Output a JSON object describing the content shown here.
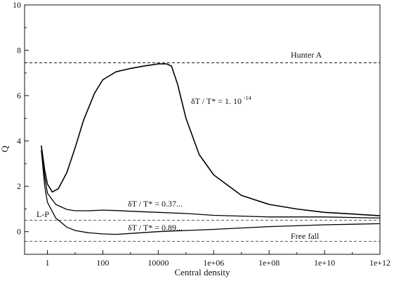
{
  "chart_data": {
    "type": "line",
    "xlabel": "Central density",
    "ylabel": "Q",
    "x_scale": "log10",
    "xlim": [
      0.15,
      1000000000000.0
    ],
    "ylim": [
      -1,
      10
    ],
    "x_ticks": [
      {
        "value": 1,
        "label": "1"
      },
      {
        "value": 100,
        "label": "100"
      },
      {
        "value": 10000,
        "label": "10000"
      },
      {
        "value": 1000000.0,
        "label": "1e+06"
      },
      {
        "value": 100000000.0,
        "label": "1e+08"
      },
      {
        "value": 10000000000.0,
        "label": "1e+10"
      },
      {
        "value": 1000000000000.0,
        "label": "1e+12"
      }
    ],
    "y_ticks": [
      {
        "value": 0,
        "label": "0"
      },
      {
        "value": 2,
        "label": "2"
      },
      {
        "value": 4,
        "label": "4"
      },
      {
        "value": 6,
        "label": "6"
      },
      {
        "value": 8,
        "label": "8"
      },
      {
        "value": 10,
        "label": "10"
      }
    ],
    "grid": false,
    "reference_lines": [
      {
        "label": "Hunter A",
        "y": 7.45
      },
      {
        "label": "L-P",
        "y": 0.5
      },
      {
        "label": "Free fall",
        "y": -0.43
      }
    ],
    "series": [
      {
        "annotation": "δT / T* = 1. 10",
        "annotation_sup": "-14",
        "points": [
          [
            0.6,
            3.8
          ],
          [
            0.8,
            2.7
          ],
          [
            1,
            2.1
          ],
          [
            1.5,
            1.75
          ],
          [
            2.5,
            1.9
          ],
          [
            5,
            2.6
          ],
          [
            10,
            3.7
          ],
          [
            20,
            4.9
          ],
          [
            50,
            6.1
          ],
          [
            100,
            6.7
          ],
          [
            300,
            7.05
          ],
          [
            1000,
            7.2
          ],
          [
            3000,
            7.3
          ],
          [
            10000,
            7.4
          ],
          [
            20000,
            7.4
          ],
          [
            30000,
            7.3
          ],
          [
            50000,
            6.5
          ],
          [
            100000,
            5.0
          ],
          [
            300000,
            3.4
          ],
          [
            1000000,
            2.5
          ],
          [
            10000000.0,
            1.6
          ],
          [
            100000000.0,
            1.2
          ],
          [
            1000000000.0,
            1.0
          ],
          [
            10000000000.0,
            0.85
          ],
          [
            100000000000.0,
            0.78
          ],
          [
            1000000000000.0,
            0.7
          ]
        ]
      },
      {
        "annotation": "δT / T* = 0.37...",
        "points": [
          [
            0.6,
            3.6
          ],
          [
            0.8,
            2.4
          ],
          [
            1,
            1.7
          ],
          [
            2,
            1.2
          ],
          [
            5,
            0.98
          ],
          [
            10,
            0.92
          ],
          [
            30,
            0.92
          ],
          [
            100,
            0.95
          ],
          [
            300,
            0.93
          ],
          [
            1000,
            0.9
          ],
          [
            10000,
            0.85
          ],
          [
            100000.0,
            0.8
          ],
          [
            1000000.0,
            0.72
          ],
          [
            100000000.0,
            0.65
          ],
          [
            10000000000.0,
            0.65
          ],
          [
            1000000000000.0,
            0.6
          ]
        ]
      },
      {
        "annotation": "δT / T* = 0.89...",
        "points": [
          [
            0.6,
            3.6
          ],
          [
            0.8,
            2.0
          ],
          [
            1,
            1.3
          ],
          [
            2,
            0.6
          ],
          [
            5,
            0.2
          ],
          [
            10,
            0.05
          ],
          [
            30,
            -0.05
          ],
          [
            100,
            -0.1
          ],
          [
            300,
            -0.12
          ],
          [
            1000,
            -0.08
          ],
          [
            10000,
            0.0
          ],
          [
            100000.0,
            0.05
          ],
          [
            1000000.0,
            0.1
          ],
          [
            100000000.0,
            0.22
          ],
          [
            10000000000.0,
            0.3
          ],
          [
            1000000000000.0,
            0.35
          ]
        ]
      }
    ]
  }
}
